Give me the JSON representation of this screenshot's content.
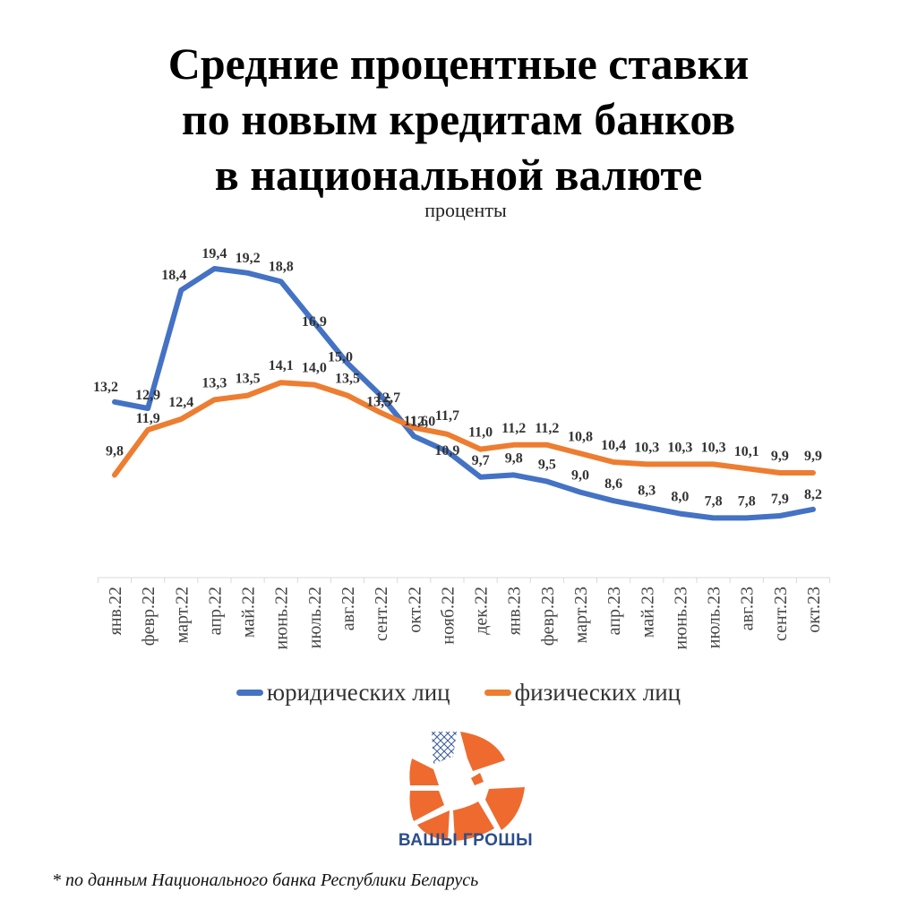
{
  "header": {
    "title_lines": [
      "Средние процентные ставки",
      "по новым кредитам банков",
      "в национальной валюте"
    ],
    "subtitle": "проценты"
  },
  "legend": {
    "items": [
      {
        "label": "юридических лиц",
        "color": "#4472c4"
      },
      {
        "label": "физических лиц",
        "color": "#ed7d31"
      }
    ]
  },
  "logo": {
    "text": "ВАШЫ ГРОШЫ",
    "color": "#ee6a2f",
    "text_color": "#2b4e8c"
  },
  "footnote": "* по данным Национального банка Республики Беларусь",
  "chart_data": {
    "type": "line",
    "title": "Средние процентные ставки по новым кредитам банков в национальной валюте",
    "subtitle": "проценты",
    "xlabel": "",
    "ylabel": "проценты",
    "categories": [
      "янв.22",
      "февр.22",
      "март.22",
      "апр.22",
      "май.22",
      "июнь.22",
      "июль.22",
      "авг.22",
      "сент.22",
      "окт.22",
      "нояб.22",
      "дек.22",
      "янв.23",
      "февр.23",
      "март.23",
      "апр.23",
      "май.23",
      "июнь.23",
      "июль.23",
      "авг.23",
      "сент.23",
      "окт.23"
    ],
    "series": [
      {
        "name": "юридических лиц",
        "color": "#4472c4",
        "values": [
          13.2,
          12.9,
          18.4,
          19.4,
          19.2,
          18.8,
          16.9,
          15.0,
          13.5,
          11.6,
          10.9,
          9.7,
          9.8,
          9.5,
          9.0,
          8.6,
          8.3,
          8.0,
          7.8,
          7.8,
          7.9,
          8.2
        ]
      },
      {
        "name": "физических лиц",
        "color": "#ed7d31",
        "values": [
          9.8,
          11.9,
          12.4,
          13.3,
          13.5,
          14.1,
          14.0,
          13.5,
          12.7,
          12.0,
          11.7,
          11.0,
          11.2,
          11.2,
          10.8,
          10.4,
          10.3,
          10.3,
          10.3,
          10.1,
          9.9,
          9.9
        ]
      }
    ],
    "data_labels": true,
    "grid": false,
    "legend_position": "bottom",
    "decimal_separator": ","
  }
}
